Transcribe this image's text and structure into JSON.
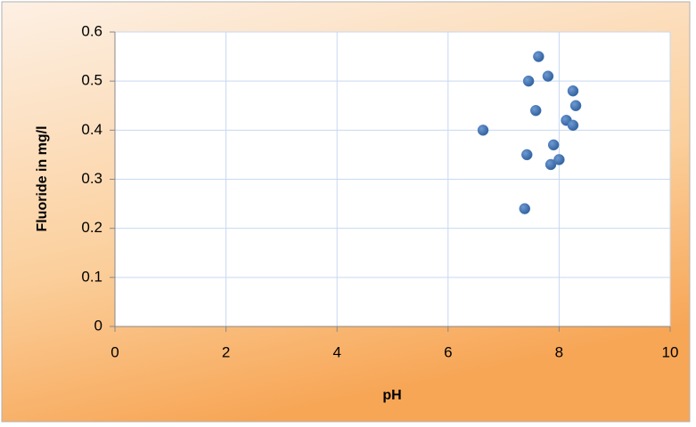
{
  "chart_data": {
    "type": "scatter",
    "x_label": "pH",
    "y_label": "Fluoride in mg/l",
    "x": [
      6.63,
      7.38,
      7.42,
      7.45,
      7.58,
      7.63,
      7.8,
      7.85,
      7.9,
      8.0,
      8.13,
      8.25,
      8.25,
      8.3
    ],
    "values": [
      0.4,
      0.24,
      0.35,
      0.5,
      0.44,
      0.55,
      0.51,
      0.33,
      0.37,
      0.34,
      0.42,
      0.41,
      0.48,
      0.45
    ],
    "color": "#4a7ebb",
    "xlim": [
      0,
      10
    ],
    "xticks": [
      0,
      2,
      4,
      6,
      8,
      10
    ],
    "ylim": [
      0,
      0.6
    ],
    "yticks": [
      {
        "value": 0,
        "label": "0"
      },
      {
        "value": 0.1,
        "label": "0.1"
      },
      {
        "value": 0.2,
        "label": "0.2"
      },
      {
        "value": 0.3,
        "label": "0.3"
      },
      {
        "value": 0.4,
        "label": "0.4"
      },
      {
        "value": 0.5,
        "label": "0.5"
      },
      {
        "value": 0.6,
        "label": "0.6"
      }
    ],
    "grid": true
  }
}
